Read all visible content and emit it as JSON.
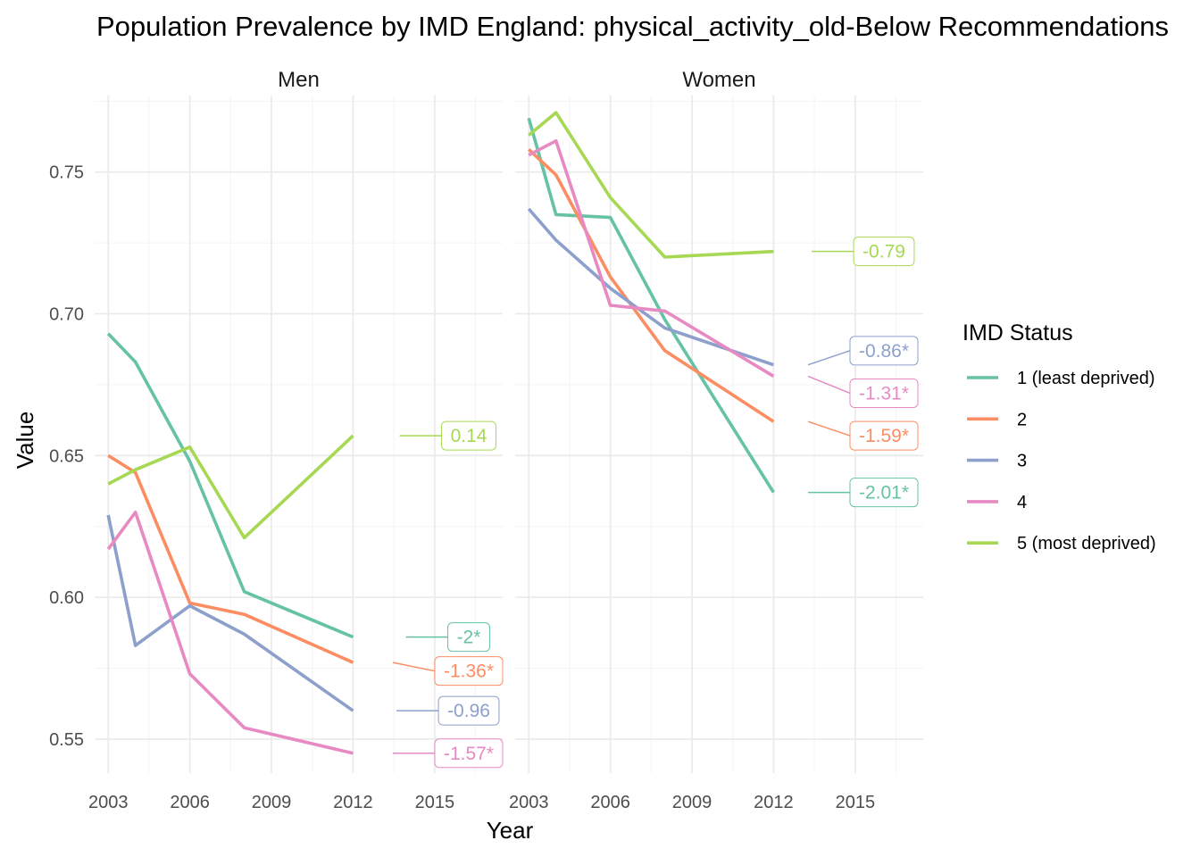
{
  "chart_data": {
    "type": "line",
    "title": "Population Prevalence by IMD England: physical_activity_old-Below Recommendations",
    "xlabel": "Year",
    "ylabel": "Value",
    "xlim": [
      2002.5,
      2017.5
    ],
    "ylim": [
      0.538,
      0.777
    ],
    "x_ticks": [
      2003,
      2006,
      2009,
      2012,
      2015
    ],
    "y_ticks": [
      0.55,
      0.6,
      0.65,
      0.7,
      0.75
    ],
    "y_tick_labels": [
      "0.55",
      "0.60",
      "0.65",
      "0.70",
      "0.75"
    ],
    "grid": true,
    "legend": {
      "title": "IMD Status",
      "position": "right",
      "entries": [
        "1 (least deprived)",
        "2",
        "3",
        "4",
        "5 (most deprived)"
      ]
    },
    "colors": [
      "#66c2a5",
      "#fc8d62",
      "#8da0cb",
      "#e78ac3",
      "#a6d854"
    ],
    "panels": [
      {
        "name": "Men",
        "series": [
          {
            "name": "1 (least deprived)",
            "x": [
              2003,
              2004,
              2006,
              2008,
              2012
            ],
            "y": [
              0.693,
              0.683,
              0.648,
              0.602,
              0.586
            ],
            "label": "-2*",
            "label_y": 0.586
          },
          {
            "name": "2",
            "x": [
              2003,
              2004,
              2006,
              2008,
              2012
            ],
            "y": [
              0.65,
              0.644,
              0.598,
              0.594,
              0.577
            ],
            "label": "-1.36*",
            "label_y": 0.574
          },
          {
            "name": "3",
            "x": [
              2003,
              2004,
              2006,
              2008,
              2012
            ],
            "y": [
              0.629,
              0.583,
              0.597,
              0.587,
              0.56
            ],
            "label": "-0.96",
            "label_y": 0.56
          },
          {
            "name": "4",
            "x": [
              2003,
              2004,
              2006,
              2008,
              2012
            ],
            "y": [
              0.617,
              0.63,
              0.573,
              0.554,
              0.545
            ],
            "label": "-1.57*",
            "label_y": 0.545
          },
          {
            "name": "5 (most deprived)",
            "x": [
              2003,
              2004,
              2006,
              2008,
              2012
            ],
            "y": [
              0.64,
              0.645,
              0.653,
              0.621,
              0.657
            ],
            "label": "0.14",
            "label_y": 0.657
          }
        ]
      },
      {
        "name": "Women",
        "series": [
          {
            "name": "1 (least deprived)",
            "x": [
              2003,
              2004,
              2006,
              2008,
              2012
            ],
            "y": [
              0.769,
              0.735,
              0.734,
              0.698,
              0.637
            ],
            "label": "-2.01*",
            "label_y": 0.637
          },
          {
            "name": "2",
            "x": [
              2003,
              2004,
              2006,
              2008,
              2012
            ],
            "y": [
              0.758,
              0.749,
              0.713,
              0.687,
              0.662
            ],
            "label": "-1.59*",
            "label_y": 0.657
          },
          {
            "name": "3",
            "x": [
              2003,
              2004,
              2006,
              2008,
              2012
            ],
            "y": [
              0.737,
              0.726,
              0.709,
              0.695,
              0.682
            ],
            "label": "-0.86*",
            "label_y": 0.687
          },
          {
            "name": "4",
            "x": [
              2003,
              2004,
              2006,
              2008,
              2012
            ],
            "y": [
              0.756,
              0.761,
              0.703,
              0.701,
              0.678
            ],
            "label": "-1.31*",
            "label_y": 0.672
          },
          {
            "name": "5 (most deprived)",
            "x": [
              2003,
              2004,
              2006,
              2008,
              2012
            ],
            "y": [
              0.763,
              0.771,
              0.741,
              0.72,
              0.722
            ],
            "label": "-0.79",
            "label_y": 0.722
          }
        ]
      }
    ]
  }
}
